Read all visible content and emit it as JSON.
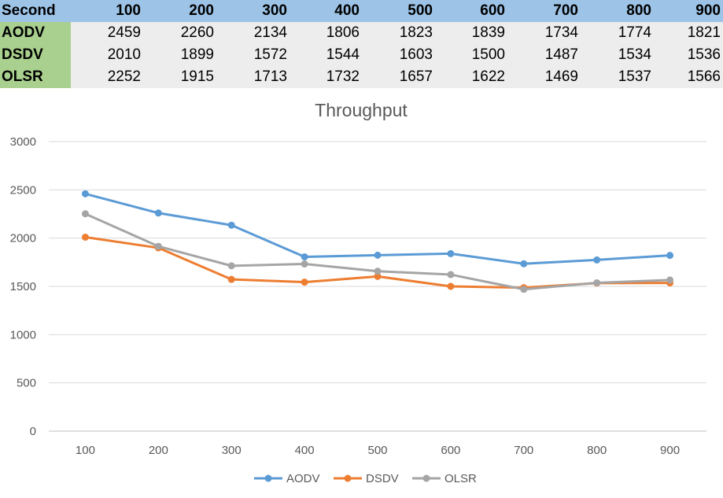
{
  "table": {
    "corner": "Second",
    "columns": [
      "100",
      "200",
      "300",
      "400",
      "500",
      "600",
      "700",
      "800",
      "900"
    ],
    "rows": [
      {
        "name": "AODV",
        "values": [
          "2459",
          "2260",
          "2134",
          "1806",
          "1823",
          "1839",
          "1734",
          "1774",
          "1821"
        ]
      },
      {
        "name": "DSDV",
        "values": [
          "2010",
          "1899",
          "1572",
          "1544",
          "1603",
          "1500",
          "1487",
          "1534",
          "1536"
        ]
      },
      {
        "name": "OLSR",
        "values": [
          "2252",
          "1915",
          "1713",
          "1732",
          "1657",
          "1622",
          "1469",
          "1537",
          "1566"
        ]
      }
    ]
  },
  "chart_data": {
    "type": "line",
    "title": "Throughput",
    "xlabel": "",
    "ylabel": "",
    "categories": [
      "100",
      "200",
      "300",
      "400",
      "500",
      "600",
      "700",
      "800",
      "900"
    ],
    "ylim": [
      0,
      3000
    ],
    "yticks": [
      0,
      500,
      1000,
      1500,
      2000,
      2500,
      3000
    ],
    "grid": true,
    "legend": "bottom",
    "series": [
      {
        "name": "AODV",
        "color": "#5b9bd5",
        "values": [
          2459,
          2260,
          2134,
          1806,
          1823,
          1839,
          1734,
          1774,
          1821
        ]
      },
      {
        "name": "DSDV",
        "color": "#ed7d31",
        "values": [
          2010,
          1899,
          1572,
          1544,
          1603,
          1500,
          1487,
          1534,
          1536
        ]
      },
      {
        "name": "OLSR",
        "color": "#a5a5a5",
        "values": [
          2252,
          1915,
          1713,
          1732,
          1657,
          1622,
          1469,
          1537,
          1566
        ]
      }
    ]
  }
}
